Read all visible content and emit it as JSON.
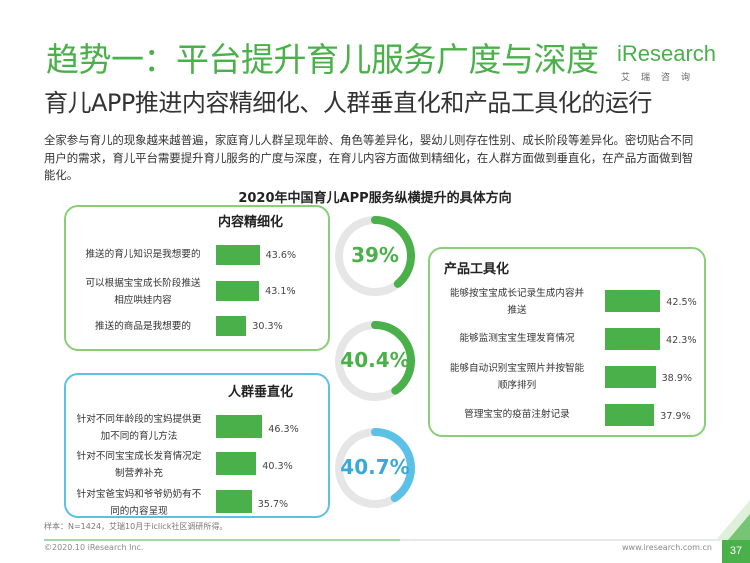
{
  "header": {
    "title": "趋势一：平台提升育儿服务广度与深度",
    "subtitle": "育儿APP推进内容精细化、人群垂直化和产品工具化的运行",
    "logo": {
      "main": "iResearch",
      "sub": "艾瑞咨询"
    }
  },
  "intro": "全家参与育儿的现象越来越普遍，家庭育儿人群呈现年龄、角色等差异化，婴幼儿则存在性别、成长阶段等差异化。密切贴合不同用户的需求，育儿平台需要提升育儿服务的广度与深度，在育儿内容方面做到精细化，在人群方面做到垂直化，在产品方面做到智能化。",
  "chart_data": {
    "type": "bar",
    "title": "2020年中国育儿APP服务纵横提升的具体方向",
    "unit": "%",
    "groups": [
      {
        "name": "内容精细化",
        "ring_value": "39%",
        "ring_fraction": 0.39,
        "items": [
          {
            "label": "推送的育儿知识是我想要的",
            "value": 43.6,
            "value_label": "43.6%"
          },
          {
            "label": "可以根据宝宝成长阶段推送相应哄娃内容",
            "value": 43.1,
            "value_label": "43.1%"
          },
          {
            "label": "推送的商品是我想要的",
            "value": 30.3,
            "value_label": "30.3%"
          }
        ]
      },
      {
        "name": "人群垂直化",
        "ring_value": "40.7%",
        "ring_fraction": 0.407,
        "items": [
          {
            "label": "针对不同年龄段的宝妈提供更加不同的育儿方法",
            "value": 46.3,
            "value_label": "46.3%"
          },
          {
            "label": "针对不同宝宝成长发育情况定制营养补充",
            "value": 40.3,
            "value_label": "40.3%"
          },
          {
            "label": "针对宝爸宝妈和爷爷奶奶有不同的内容呈现",
            "value": 35.7,
            "value_label": "35.7%"
          }
        ]
      },
      {
        "name": "产品工具化",
        "ring_value": "40.4%",
        "ring_fraction": 0.404,
        "items": [
          {
            "label": "能够按宝宝成长记录生成内容并推送",
            "value": 42.5,
            "value_label": "42.5%"
          },
          {
            "label": "能够监测宝宝生理发育情况",
            "value": 42.3,
            "value_label": "42.3%"
          },
          {
            "label": "能够自动识别宝宝照片并按智能顺序排列",
            "value": 38.9,
            "value_label": "38.9%"
          },
          {
            "label": "管理宝宝的疫苗注射记录",
            "value": 37.9,
            "value_label": "37.9%"
          }
        ]
      }
    ]
  },
  "labels_display": {
    "content": [
      "推送的育儿知识是我想要的",
      "可以根据宝宝成长阶段推送\n相应哄娃内容",
      "推送的商品是我想要的"
    ],
    "people": [
      "针对不同年龄段的宝妈提供更\n加不同的育儿方法",
      "针对不同宝宝成长发育情况定\n制营养补充",
      "针对宝爸宝妈和爷爷奶奶有不\n同的内容呈现"
    ],
    "product": [
      "能够按宝宝成长记录生成内容并\n推送",
      "能够监测宝宝生理发育情况",
      "能够自动识别宝宝照片并按智能\n顺序排列",
      "管理宝宝的疫苗注射记录"
    ]
  },
  "colors": {
    "green": "#4ab04a",
    "light_green": "#8ccd7a",
    "blue": "#5bc1e6",
    "ring_track": "#e6e6e6"
  },
  "footer": {
    "note": "样本：N=1424，艾瑞10月于iclick社区调研所得。",
    "copyright": "©2020.10 iResearch Inc.",
    "url": "www.iresearch.com.cn",
    "page": "37"
  }
}
